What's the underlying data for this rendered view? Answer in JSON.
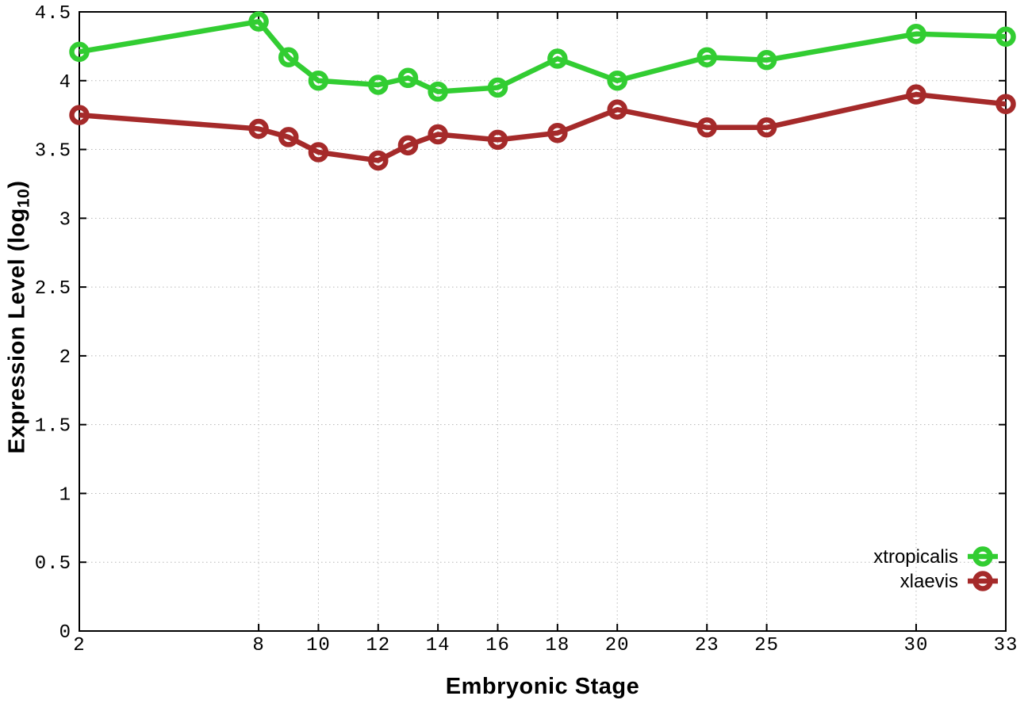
{
  "page": {
    "background": "#ffffff"
  },
  "chart_data": {
    "type": "line",
    "title": "",
    "xlabel": "Embryonic Stage",
    "ylabel_main": "Expression Level (log",
    "ylabel_sub": "10",
    "ylabel_close": ")",
    "x": [
      2,
      8,
      9,
      10,
      12,
      13,
      14,
      16,
      18,
      20,
      23,
      25,
      30,
      33
    ],
    "series": [
      {
        "name": "xtropicalis",
        "color": "#32cd32",
        "values": [
          4.21,
          4.43,
          4.17,
          4.0,
          3.97,
          4.02,
          3.92,
          3.95,
          4.16,
          4.0,
          4.17,
          4.15,
          4.34,
          4.32
        ]
      },
      {
        "name": "xlaevis",
        "color": "#a52a2a",
        "values": [
          3.75,
          3.65,
          3.59,
          3.48,
          3.42,
          3.53,
          3.61,
          3.57,
          3.62,
          3.79,
          3.66,
          3.66,
          3.9,
          3.83
        ]
      }
    ],
    "xlim": [
      2,
      33
    ],
    "ylim": [
      0,
      4.5
    ],
    "xticks": {
      "values": [
        2,
        8,
        10,
        12,
        14,
        16,
        18,
        20,
        23,
        25,
        30,
        33
      ],
      "labels": [
        "2",
        "8",
        "10",
        "12",
        "14",
        "16",
        "18",
        "20",
        "23",
        "25",
        "30",
        "33"
      ]
    },
    "yticks": {
      "values": [
        0,
        0.5,
        1,
        1.5,
        2,
        2.5,
        3,
        3.5,
        4,
        4.5
      ],
      "labels": [
        "0",
        "0.5",
        "1",
        "1.5",
        "2",
        "2.5",
        "3",
        "3.5",
        "4",
        "4.5"
      ]
    },
    "grid": true,
    "legend_position": "bottom-right-inside",
    "marker": "open-circle",
    "grid_color": "#b8b8b8",
    "border_color": "#000000"
  }
}
